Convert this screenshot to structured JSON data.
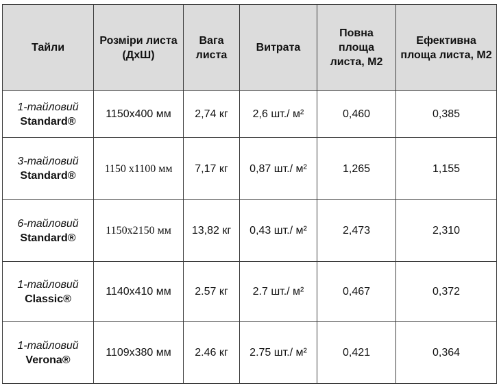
{
  "table": {
    "headers": {
      "tiles": "Тайли",
      "sizes": "Розміри листа (ДхШ)",
      "weight": "Вага листа",
      "consumption": "Витрата",
      "full_area": "Повна площа листа, М2",
      "effective_area": "Ефективна площа листа, М2"
    },
    "rows": [
      {
        "tile_type": "1-тайловий",
        "tile_name": "Standard®",
        "sizes": "1150x400 мм",
        "weight": "2,74 кг",
        "consumption": "2,6 шт./ м²",
        "full_area": "0,460",
        "effective_area": "0,385"
      },
      {
        "tile_type": "3-тайловий",
        "tile_name": "Standard®",
        "sizes": "1150 x1100 мм",
        "weight": "7,17 кг",
        "consumption": "0,87 шт./ м²",
        "full_area": "1,265",
        "effective_area": "1,155"
      },
      {
        "tile_type": "6-тайловий",
        "tile_name": "Standard®",
        "sizes": "1150x2150 мм",
        "weight": "13,82 кг",
        "consumption": "0,43 шт./ м²",
        "full_area": "2,473",
        "effective_area": "2,310"
      },
      {
        "tile_type": "1-тайловий",
        "tile_name": "Classic®",
        "sizes": "1140x410 мм",
        "weight": "2.57 кг",
        "consumption": "2.7 шт./ м²",
        "full_area": "0,467",
        "effective_area": "0,372"
      },
      {
        "tile_type": "1-тайловий",
        "tile_name": "Verona®",
        "sizes": "1109x380 мм",
        "weight": "2.46 кг",
        "consumption": "2.75 шт./ м²",
        "full_area": "0,421",
        "effective_area": "0,364"
      }
    ]
  }
}
